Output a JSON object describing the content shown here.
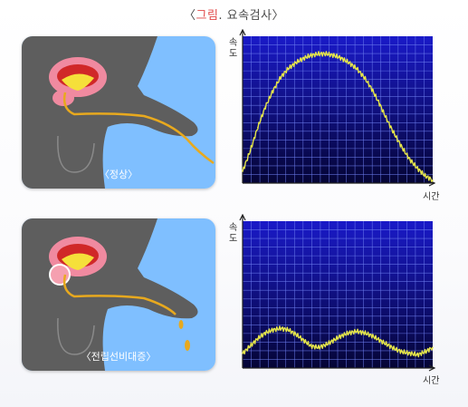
{
  "header": {
    "open_bracket": "〈",
    "title_highlight": "그림",
    "title_rest": ". 요속검사〉"
  },
  "panels": [
    {
      "label": "〈정상〉"
    },
    {
      "label": "〈전립선비대증〉"
    }
  ],
  "colors": {
    "chart_bg_top": "#1a1ac8",
    "chart_bg_bottom": "#050535",
    "grid": "#6e7ff0",
    "trace": "#e6e64a",
    "urine": "#e8a91e",
    "body_gray": "#5e5e5e",
    "sky": "#7fbfff"
  },
  "chart_data": [
    {
      "type": "line",
      "xlabel": "시간",
      "ylabel": "속\n도",
      "xlim": [
        0,
        100
      ],
      "ylim": [
        0,
        100
      ],
      "series": [
        {
          "x": [
            0,
            4,
            8,
            12,
            16,
            20,
            24,
            28,
            32,
            36,
            40,
            44,
            48,
            52,
            56,
            60,
            64,
            68,
            72,
            76,
            80,
            84,
            88,
            92,
            96,
            100
          ],
          "values": [
            8,
            22,
            38,
            52,
            63,
            72,
            78,
            82,
            85,
            87,
            88,
            88,
            87,
            85,
            82,
            78,
            72,
            64,
            54,
            43,
            33,
            24,
            16,
            10,
            5,
            2
          ]
        }
      ]
    },
    {
      "type": "line",
      "xlabel": "시간",
      "ylabel": "속\n도",
      "xlim": [
        0,
        100
      ],
      "ylim": [
        0,
        100
      ],
      "series": [
        {
          "x": [
            0,
            4,
            8,
            12,
            16,
            20,
            24,
            28,
            32,
            36,
            40,
            44,
            48,
            52,
            56,
            60,
            64,
            68,
            72,
            76,
            80,
            84,
            88,
            92,
            96,
            100
          ],
          "values": [
            10,
            15,
            20,
            24,
            26,
            27,
            26,
            23,
            19,
            15,
            14,
            16,
            19,
            22,
            24,
            25,
            24,
            22,
            19,
            16,
            13,
            11,
            10,
            9,
            11,
            14
          ]
        }
      ]
    }
  ]
}
